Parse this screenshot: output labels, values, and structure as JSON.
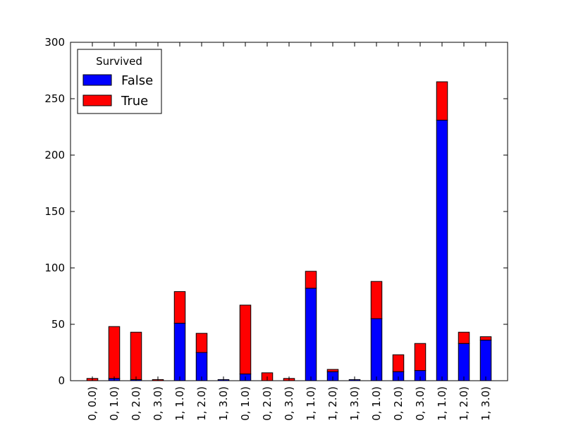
{
  "chart_data": {
    "type": "bar",
    "stacked": true,
    "categories": [
      "0, 0.0)",
      "0, 1.0)",
      "0, 2.0)",
      "0, 3.0)",
      "1, 1.0)",
      "1, 2.0)",
      "1, 3.0)",
      "0, 1.0)",
      "0, 2.0)",
      "0, 3.0)",
      "1, 1.0)",
      "1, 2.0)",
      "1, 3.0)",
      "0, 1.0)",
      "0, 2.0)",
      "0, 3.0)",
      "1, 1.0)",
      "1, 2.0)",
      "1, 3.0)"
    ],
    "series": [
      {
        "name": "False",
        "color": "#0000ff",
        "values": [
          0,
          2,
          1,
          0,
          51,
          25,
          1,
          6,
          0,
          0,
          82,
          8,
          1,
          55,
          8,
          9,
          231,
          33,
          36
        ]
      },
      {
        "name": "True",
        "color": "#ff0000",
        "values": [
          2,
          46,
          42,
          1,
          28,
          17,
          0,
          61,
          7,
          2,
          15,
          2,
          0,
          33,
          15,
          24,
          34,
          10,
          3
        ]
      }
    ],
    "ylim": [
      0,
      300
    ],
    "yticks": [
      0,
      50,
      100,
      150,
      200,
      250,
      300
    ],
    "legend": {
      "title": "Survived",
      "placement": "top-left"
    },
    "grid": false
  }
}
